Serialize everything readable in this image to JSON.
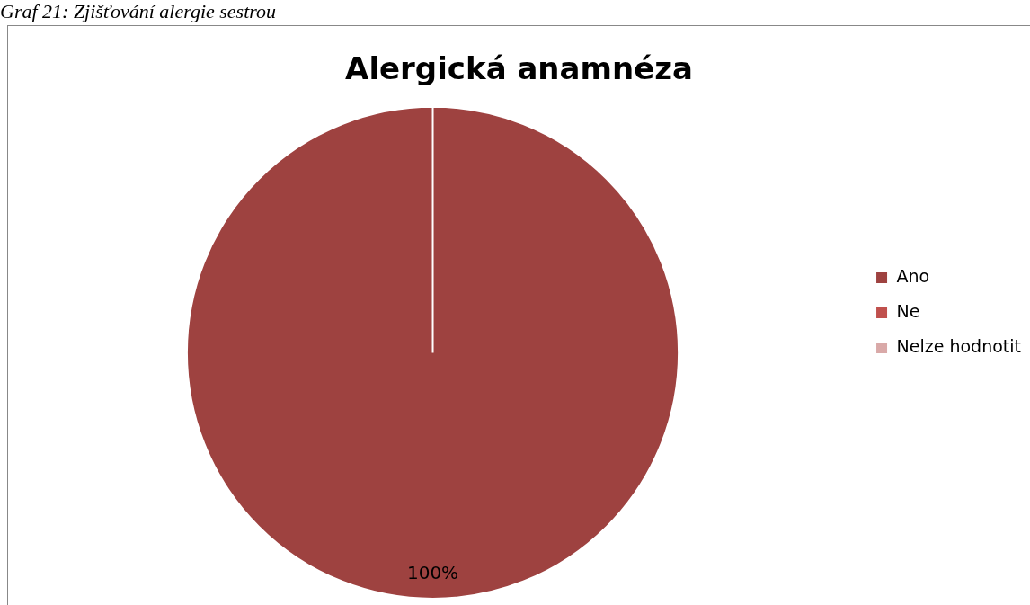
{
  "chart_data": {
    "type": "pie",
    "title": "Alergická anamnéza",
    "annotations": [
      "Graf 21: Zjišťování alergie sestrou"
    ],
    "categories": [
      "Ano",
      "Ne",
      "Nelze hodnotit"
    ],
    "values": [
      100,
      0,
      0
    ],
    "colors": [
      "#9e4240",
      "#c0504d",
      "#d9a9a8"
    ],
    "value_labels": [
      "100%",
      null,
      null
    ],
    "legend": "right"
  }
}
